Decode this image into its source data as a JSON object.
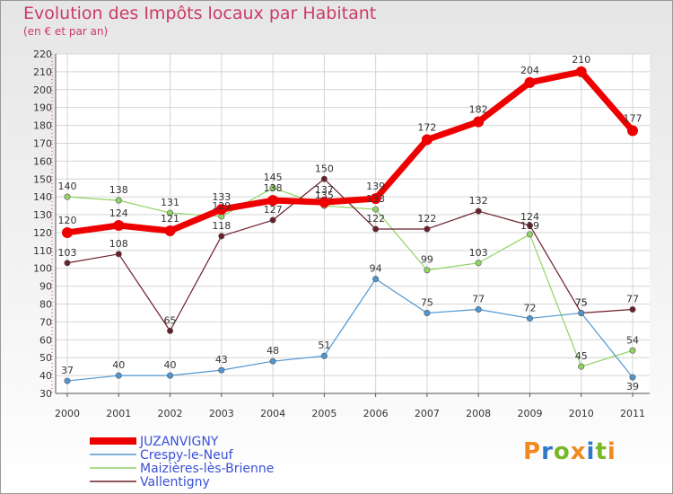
{
  "header": {
    "title": "Evolution des Impôts locaux par Habitant",
    "subtitle": "(en € et par an)"
  },
  "chart_data": {
    "type": "line",
    "title": "Evolution des Impôts locaux par Habitant",
    "subtitle": "(en € et par an)",
    "xlabel": "",
    "ylabel": "",
    "x": [
      "2000",
      "2001",
      "2002",
      "2003",
      "2004",
      "2005",
      "2006",
      "2007",
      "2008",
      "2009",
      "2010",
      "2011"
    ],
    "ylim": [
      30,
      220
    ],
    "yticks": [
      30,
      40,
      50,
      60,
      70,
      80,
      90,
      100,
      110,
      120,
      130,
      140,
      150,
      160,
      170,
      180,
      190,
      200,
      210,
      220
    ],
    "grid": true,
    "legend_position": "bottom-left",
    "series": [
      {
        "name": "Maizières-lès-Brienne",
        "color": "#8fd464",
        "values": [
          140,
          138,
          131,
          129,
          145,
          135,
          133,
          99,
          103,
          119,
          45,
          54
        ],
        "labels": [
          "140",
          "138",
          "131",
          "129",
          "145",
          "135",
          "133",
          "99",
          "103",
          "119",
          "45",
          "54"
        ]
      },
      {
        "name": "Vallentigny",
        "color": "#6b1f2a",
        "values": [
          103,
          108,
          65,
          118,
          127,
          150,
          122,
          122,
          132,
          124,
          75,
          77
        ],
        "labels": [
          "103",
          "108",
          "65",
          "118",
          "127",
          "150",
          "122",
          "122",
          "132",
          "124",
          "75",
          "77"
        ]
      },
      {
        "name": "Crespy-le-Neuf",
        "color": "#5096d0",
        "values": [
          37,
          40,
          40,
          43,
          48,
          51,
          94,
          75,
          77,
          72,
          75,
          39
        ],
        "labels": [
          "37",
          "40",
          "40",
          "43",
          "48",
          "51",
          "94",
          "75",
          "77",
          "72",
          "75",
          "39"
        ]
      },
      {
        "name": "JUZANVIGNY",
        "color": "#ee0000",
        "values": [
          120,
          124,
          121,
          133,
          138,
          137,
          139,
          172,
          182,
          204,
          210,
          177
        ],
        "labels": [
          "120",
          "124",
          "121",
          "133",
          "138",
          "137",
          "139",
          "172",
          "182",
          "204",
          "210",
          "177"
        ]
      }
    ]
  },
  "legend": {
    "items": [
      {
        "label": "JUZANVIGNY",
        "color": "#ee0000"
      },
      {
        "label": "Crespy-le-Neuf",
        "color": "#5096d0"
      },
      {
        "label": "Maizières-lès-Brienne",
        "color": "#8fd464"
      },
      {
        "label": "Vallentigny",
        "color": "#6b1f2a"
      }
    ]
  },
  "logo": {
    "text": "Proxiti",
    "colors": [
      "#f08a1e",
      "#2d78c8",
      "#78b828",
      "#f08a1e",
      "#2d78c8",
      "#78b828",
      "#f08a1e"
    ]
  }
}
